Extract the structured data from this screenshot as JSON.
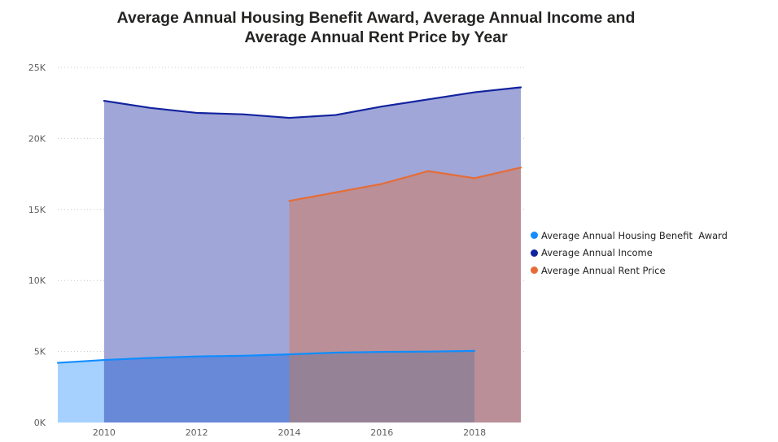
{
  "chart_data": {
    "type": "area",
    "title_lines": [
      "Average Annual Housing Benefit  Award, Average Annual Income and",
      "Average Annual Rent Price by Year"
    ],
    "xlabel": "",
    "ylabel": "",
    "x_ticks": [
      2010,
      2012,
      2014,
      2016,
      2018
    ],
    "x_tick_labels": [
      "2010",
      "2012",
      "2014",
      "2016",
      "2018"
    ],
    "xlim": [
      2009,
      2019
    ],
    "y_ticks": [
      0,
      5000,
      10000,
      15000,
      20000,
      25000
    ],
    "y_tick_labels": [
      "0K",
      "5K",
      "10K",
      "15K",
      "20K",
      "25K"
    ],
    "ylim": [
      0,
      25000
    ],
    "grid": "horizontal dotted",
    "legend_position": "right",
    "series": [
      {
        "name": "Average Annual Housing Benefit  Award",
        "line_color": "#118DFF",
        "fill_color": "#A6D1FF",
        "x": [
          2009,
          2010,
          2011,
          2012,
          2013,
          2014,
          2015,
          2016,
          2017,
          2018
        ],
        "values": [
          4200,
          4400,
          4550,
          4650,
          4700,
          4800,
          4920,
          4970,
          4990,
          5040
        ]
      },
      {
        "name": "Average Annual Income",
        "line_color": "#12239E",
        "fill_color": "#A0A6D8",
        "x": [
          2010,
          2011,
          2012,
          2013,
          2014,
          2015,
          2016,
          2017,
          2018,
          2019
        ],
        "values": [
          22650,
          22150,
          21800,
          21700,
          21450,
          21650,
          22250,
          22750,
          23250,
          23600
        ]
      },
      {
        "name": "Average Annual Rent Price",
        "line_color": "#E66C37",
        "fill_color": "#BA8F97",
        "x": [
          2014,
          2015,
          2016,
          2017,
          2018,
          2019
        ],
        "values": [
          15600,
          16200,
          16800,
          17700,
          17200,
          17950
        ]
      }
    ],
    "overlap_colors": {
      "benefit_income": "#6888D8",
      "benefit_income_rent": "#958297"
    }
  }
}
